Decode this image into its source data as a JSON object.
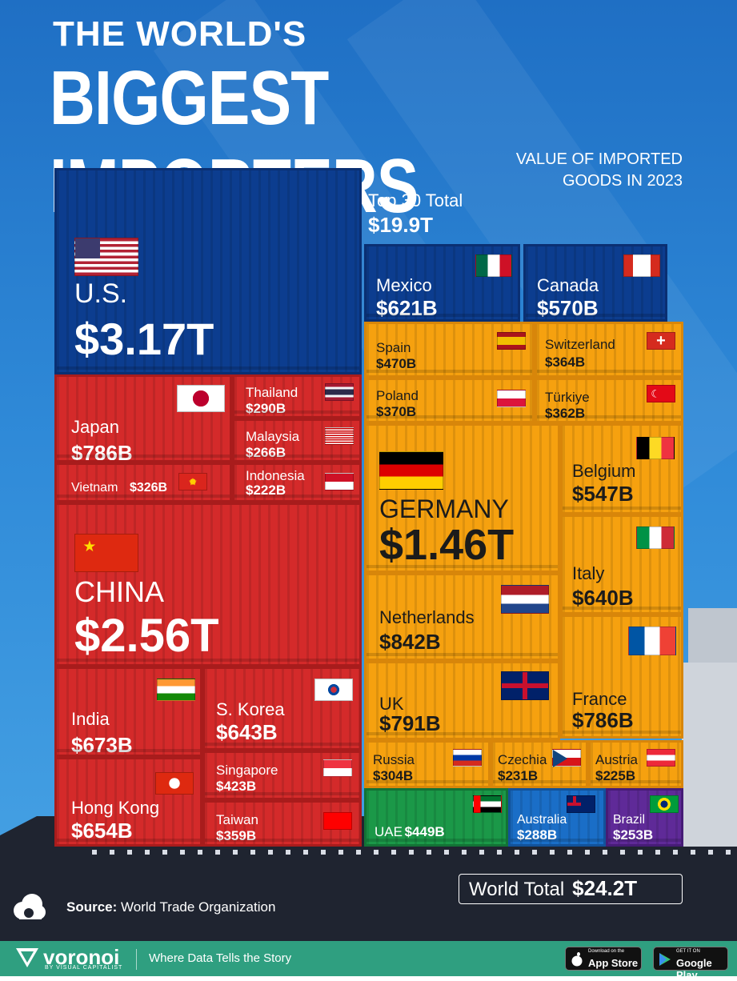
{
  "header": {
    "title_line1": "THE WORLD'S",
    "title_line2": "BIGGEST IMPORTERS",
    "subtitle_line1": "VALUE OF IMPORTED",
    "subtitle_line2": "GOODS IN 2023",
    "top30_label": "Top 30 Total",
    "top30_value": "$19.9T"
  },
  "footer": {
    "world_total_label": "World Total",
    "world_total_value": "$24.2T",
    "source_label": "Source:",
    "source_text": "World Trade Organization",
    "brand": "voronoi",
    "brand_sub": "BY VISUAL CAPITALIST",
    "tagline": "Where Data Tells the Story",
    "app_store_small": "Download on the",
    "app_store": "App Store",
    "google_small": "GET IT ON",
    "google": "Google Play"
  },
  "colors": {
    "americas": "#0c3d8f",
    "asia": "#d42a2a",
    "europe": "#f6a10f",
    "middle_east": "#1b9848",
    "oceania": "#1a6ec7",
    "south_america": "#5f2a98"
  },
  "chart_data": {
    "type": "treemap",
    "title": "THE WORLD'S BIGGEST IMPORTERS",
    "subtitle": "VALUE OF IMPORTED GOODS IN 2023",
    "unit": "USD",
    "items": [
      {
        "name": "U.S.",
        "label": "$3.17T",
        "value": 3170,
        "region": "americas"
      },
      {
        "name": "Mexico",
        "label": "$621B",
        "value": 621,
        "region": "americas"
      },
      {
        "name": "Canada",
        "label": "$570B",
        "value": 570,
        "region": "americas"
      },
      {
        "name": "Japan",
        "label": "$786B",
        "value": 786,
        "region": "asia"
      },
      {
        "name": "Thailand",
        "label": "$290B",
        "value": 290,
        "region": "asia"
      },
      {
        "name": "Malaysia",
        "label": "$266B",
        "value": 266,
        "region": "asia"
      },
      {
        "name": "Vietnam",
        "label": "$326B",
        "value": 326,
        "region": "asia"
      },
      {
        "name": "Indonesia",
        "label": "$222B",
        "value": 222,
        "region": "asia"
      },
      {
        "name": "CHINA",
        "label": "$2.56T",
        "value": 2560,
        "region": "asia"
      },
      {
        "name": "India",
        "label": "$673B",
        "value": 673,
        "region": "asia"
      },
      {
        "name": "S. Korea",
        "label": "$643B",
        "value": 643,
        "region": "asia"
      },
      {
        "name": "Singapore",
        "label": "$423B",
        "value": 423,
        "region": "asia"
      },
      {
        "name": "Hong Kong",
        "label": "$654B",
        "value": 654,
        "region": "asia"
      },
      {
        "name": "Taiwan",
        "label": "$359B",
        "value": 359,
        "region": "asia"
      },
      {
        "name": "Spain",
        "label": "$470B",
        "value": 470,
        "region": "europe"
      },
      {
        "name": "Switzerland",
        "label": "$364B",
        "value": 364,
        "region": "europe"
      },
      {
        "name": "Poland",
        "label": "$370B",
        "value": 370,
        "region": "europe"
      },
      {
        "name": "Türkiye",
        "label": "$362B",
        "value": 362,
        "region": "europe"
      },
      {
        "name": "GERMANY",
        "label": "$1.46T",
        "value": 1460,
        "region": "europe"
      },
      {
        "name": "Belgium",
        "label": "$547B",
        "value": 547,
        "region": "europe"
      },
      {
        "name": "Italy",
        "label": "$640B",
        "value": 640,
        "region": "europe"
      },
      {
        "name": "Netherlands",
        "label": "$842B",
        "value": 842,
        "region": "europe"
      },
      {
        "name": "France",
        "label": "$786B",
        "value": 786,
        "region": "europe"
      },
      {
        "name": "UK",
        "label": "$791B",
        "value": 791,
        "region": "europe"
      },
      {
        "name": "Russia",
        "label": "$304B",
        "value": 304,
        "region": "europe"
      },
      {
        "name": "Czechia",
        "label": "$231B",
        "value": 231,
        "region": "europe"
      },
      {
        "name": "Austria",
        "label": "$225B",
        "value": 225,
        "region": "europe"
      },
      {
        "name": "UAE",
        "label": "$449B",
        "value": 449,
        "region": "middle_east"
      },
      {
        "name": "Australia",
        "label": "$288B",
        "value": 288,
        "region": "oceania"
      },
      {
        "name": "Brazil",
        "label": "$253B",
        "value": 253,
        "region": "south_america"
      }
    ]
  }
}
